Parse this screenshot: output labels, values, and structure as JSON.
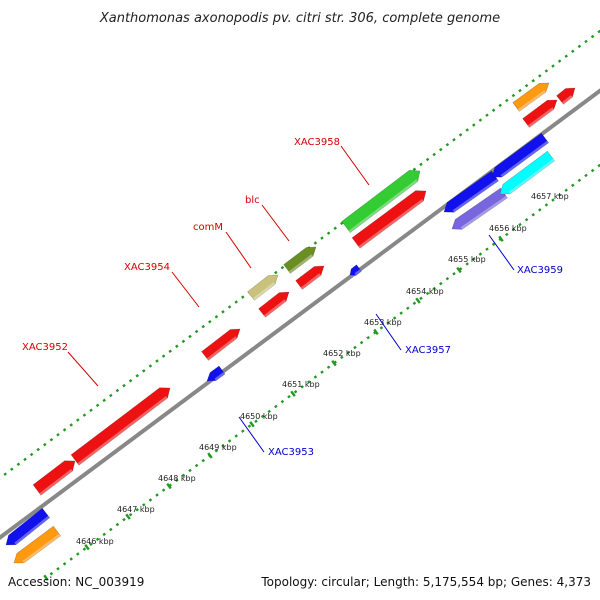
{
  "title": "Xanthomonas axonopodis pv. citri str. 306, complete genome",
  "footer": {
    "accession": "Accession: NC_003919",
    "topology": "Topology: circular; Length: 5,175,554 bp; Genes: 4,373"
  },
  "colors": {
    "backbone": "#888888",
    "ticks": "#229922",
    "red": "#ee1111",
    "blue": "#1111ee",
    "orange": "#ff9911",
    "green": "#33cc33",
    "olive": "#6b8e23",
    "khaki": "#c8c27a",
    "cyan": "#00ffff",
    "purple": "#7766dd",
    "label_red": "#d40000",
    "label_blue": "#0000cc"
  },
  "tick_labels": [
    "4646 kbp",
    "4647 kbp",
    "4648 kbp",
    "4649 kbp",
    "4650 kbp",
    "4651 kbp",
    "4652 kbp",
    "4653 kbp",
    "4654 kbp",
    "4655 kbp",
    "4656 kbp",
    "4657 kbp"
  ],
  "gene_labels": [
    {
      "text": "XAC3952",
      "strand": "forward"
    },
    {
      "text": "XAC3954",
      "strand": "forward"
    },
    {
      "text": "comM",
      "strand": "forward"
    },
    {
      "text": "blc",
      "strand": "forward"
    },
    {
      "text": "XAC3958",
      "strand": "forward"
    },
    {
      "text": "XAC3953",
      "strand": "reverse"
    },
    {
      "text": "XAC3957",
      "strand": "reverse"
    },
    {
      "text": "XAC3959",
      "strand": "reverse"
    }
  ],
  "features": [
    {
      "color": "red",
      "strand": "forward",
      "label": "XAC3952 a"
    },
    {
      "color": "red",
      "strand": "forward",
      "label": "XAC3952 b"
    },
    {
      "color": "red",
      "strand": "forward",
      "label": "XAC3954"
    },
    {
      "color": "khaki",
      "strand": "forward",
      "label": "comM"
    },
    {
      "color": "red",
      "strand": "forward",
      "label": "comM cds"
    },
    {
      "color": "olive",
      "strand": "forward",
      "label": "blc"
    },
    {
      "color": "red",
      "strand": "forward",
      "label": "blc cds"
    },
    {
      "color": "green",
      "strand": "forward",
      "label": "XAC3958"
    },
    {
      "color": "red",
      "strand": "forward",
      "label": "XAC3958 cds"
    },
    {
      "color": "orange",
      "strand": "forward",
      "label": "gene top"
    },
    {
      "color": "red",
      "strand": "forward",
      "label": "cds top"
    },
    {
      "color": "red",
      "strand": "forward",
      "label": "cds top small"
    },
    {
      "color": "blue",
      "strand": "reverse",
      "label": "XAC3953"
    },
    {
      "color": "blue",
      "strand": "reverse",
      "label": "XAC3957"
    },
    {
      "color": "blue",
      "strand": "reverse",
      "label": "gene 4655"
    },
    {
      "color": "purple",
      "strand": "reverse",
      "label": "XAC3959 misc"
    },
    {
      "color": "blue",
      "strand": "reverse",
      "label": "gene 4656"
    },
    {
      "color": "cyan",
      "strand": "reverse",
      "label": "XAC3959 cds"
    },
    {
      "color": "blue",
      "strand": "reverse",
      "label": "gene bottom"
    },
    {
      "color": "orange",
      "strand": "reverse",
      "label": "gene bottom orange"
    }
  ]
}
